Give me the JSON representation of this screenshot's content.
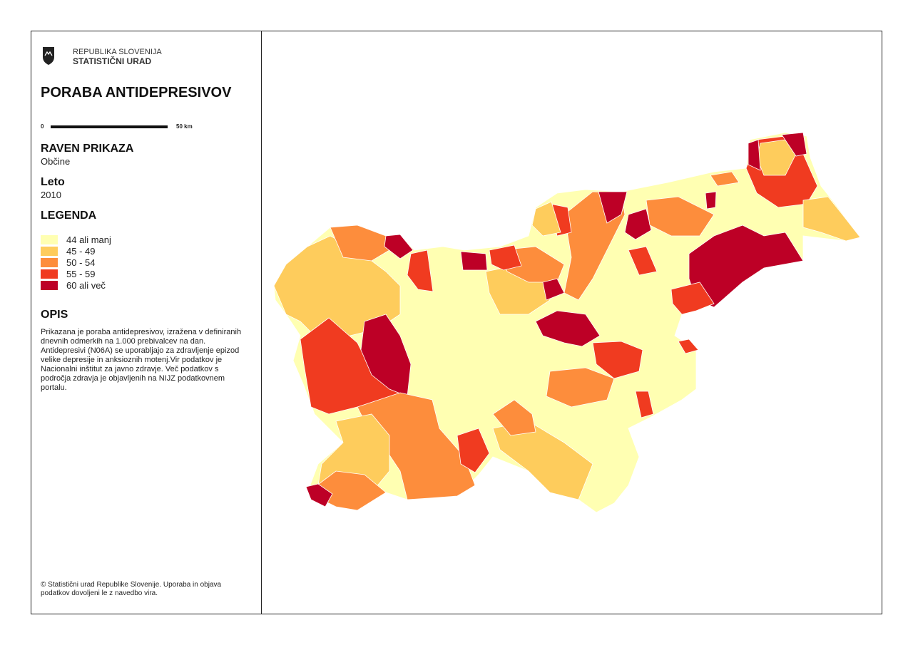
{
  "header": {
    "agency_line1": "REPUBLIKA SLOVENIJA",
    "agency_line2": "STATISTIČNI URAD"
  },
  "title": "PORABA ANTIDEPRESIVOV",
  "scale": {
    "start": "0",
    "end": "50 km"
  },
  "level": {
    "heading": "RAVEN PRIKAZA",
    "value": "Občine"
  },
  "year": {
    "heading": "Leto",
    "value": "2010"
  },
  "legend": {
    "heading": "LEGENDA",
    "items": [
      {
        "label": "44 ali manj",
        "color": "#ffffb2"
      },
      {
        "label": "45 - 49",
        "color": "#fecc5c"
      },
      {
        "label": "50 - 54",
        "color": "#fd8d3c"
      },
      {
        "label": "55 - 59",
        "color": "#f03b20"
      },
      {
        "label": "60 ali več",
        "color": "#bd0026"
      }
    ]
  },
  "description": {
    "heading": "OPIS",
    "text": "Prikazana je poraba antidepresivov, izražena v definiranih dnevnih odmerkih na 1.000 prebivalcev na dan. Antidepresivi (N06A) se uporabljajo za zdravljenje epizod velike depresije in anksioznih motenj.Vir podatkov je Nacionalni inštitut za javno zdravje. Več podatkov s področja zdravja je objavljenih na NIJZ podatkovnem portalu."
  },
  "footer": "© Statistični urad Republike Slovenije. Uporaba in objava podatkov dovoljeni le z navedbo vira."
}
